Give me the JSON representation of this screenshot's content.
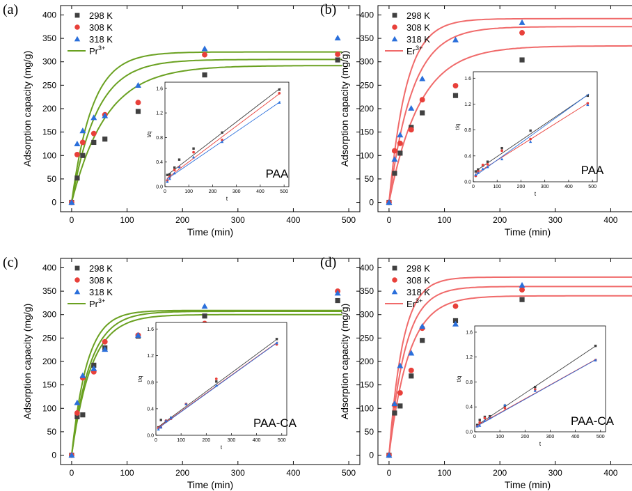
{
  "chart_data": [
    {
      "type": "scatter",
      "panel_label": "(a)",
      "ion_prefix": "Pr",
      "ion_charge": "3+",
      "material": "PAA",
      "fit_color": "#6aa121",
      "xlabel": "Time (min)",
      "ylabel": "Adsorption capacity (mg/g)",
      "xlim": [
        -20,
        520
      ],
      "ylim": [
        -20,
        420
      ],
      "xticks": [
        0,
        100,
        200,
        300,
        400,
        500
      ],
      "yticks": [
        0,
        50,
        100,
        150,
        200,
        250,
        300,
        350,
        400
      ],
      "series": [
        {
          "name": "298 K",
          "marker": "square",
          "color": "#404040",
          "x": [
            0,
            10,
            20,
            40,
            60,
            120,
            240,
            480
          ],
          "y": [
            0,
            52,
            100,
            128,
            135,
            194,
            272,
            304
          ]
        },
        {
          "name": "308 K",
          "marker": "circle",
          "color": "#e8403a",
          "x": [
            0,
            10,
            20,
            40,
            60,
            120,
            240,
            480
          ],
          "y": [
            0,
            102,
            128,
            147,
            187,
            213,
            315,
            316
          ]
        },
        {
          "name": "318 K",
          "marker": "triangle",
          "color": "#2a6fdb",
          "x": [
            0,
            10,
            20,
            40,
            60,
            120,
            240,
            480
          ],
          "y": [
            0,
            125,
            153,
            181,
            185,
            250,
            328,
            351
          ]
        }
      ],
      "fits": [
        {
          "qe": 292,
          "k": 0.016
        },
        {
          "qe": 305,
          "k": 0.022
        },
        {
          "qe": 321,
          "k": 0.027
        }
      ],
      "inset": {
        "xlabel": "t",
        "ylabel": "t/q",
        "xlim": [
          0,
          520
        ],
        "ylim": [
          0,
          1.7
        ],
        "xticks": [
          0,
          100,
          200,
          300,
          400,
          500
        ],
        "yticks": [
          0.0,
          0.4,
          0.8,
          1.2,
          1.6
        ],
        "series": [
          {
            "name": "298 K",
            "marker": "square",
            "color": "#404040",
            "x": [
              10,
              20,
              40,
              60,
              120,
              240,
              480
            ],
            "y": [
              0.19,
              0.2,
              0.31,
              0.44,
              0.62,
              0.88,
              1.58
            ],
            "fit": [
              0.16,
              0.00298
            ]
          },
          {
            "name": "308 K",
            "marker": "circle",
            "color": "#e8403a",
            "x": [
              10,
              20,
              40,
              60,
              120,
              240,
              480
            ],
            "y": [
              0.1,
              0.16,
              0.27,
              0.32,
              0.56,
              0.76,
              1.52
            ],
            "fit": [
              0.11,
              0.00292
            ]
          },
          {
            "name": "318 K",
            "marker": "triangle",
            "color": "#2a6fdb",
            "x": [
              10,
              20,
              40,
              60,
              120,
              240,
              480
            ],
            "y": [
              0.08,
              0.13,
              0.22,
              0.32,
              0.48,
              0.73,
              1.37
            ],
            "fit": [
              0.1,
              0.00265
            ]
          }
        ]
      }
    },
    {
      "type": "scatter",
      "panel_label": "(b)",
      "ion_prefix": "Er",
      "ion_charge": "3+",
      "material": "PAA",
      "fit_color": "#f06a6a",
      "xlabel": "Time (min)",
      "ylabel": "Adsorption capacity (mg/g)",
      "xlim": [
        -20,
        520
      ],
      "ylim": [
        -20,
        420
      ],
      "xticks": [
        0,
        100,
        200,
        300,
        400,
        500
      ],
      "yticks": [
        0,
        50,
        100,
        150,
        200,
        250,
        300,
        350,
        400
      ],
      "series": [
        {
          "name": "298 K",
          "marker": "square",
          "color": "#404040",
          "x": [
            0,
            10,
            20,
            40,
            60,
            120,
            240,
            480
          ],
          "y": [
            0,
            62,
            105,
            160,
            191,
            228,
            304,
            361
          ]
        },
        {
          "name": "308 K",
          "marker": "circle",
          "color": "#e8403a",
          "x": [
            0,
            10,
            20,
            40,
            60,
            120,
            240,
            480
          ],
          "y": [
            0,
            110,
            126,
            155,
            219,
            249,
            362,
            397
          ]
        },
        {
          "name": "318 K",
          "marker": "triangle",
          "color": "#2a6fdb",
          "x": [
            0,
            10,
            20,
            40,
            60,
            120,
            240,
            480
          ],
          "y": [
            0,
            92,
            144,
            201,
            264,
            347,
            384,
            402
          ]
        }
      ],
      "fits": [
        {
          "qe": 334,
          "k": 0.018
        },
        {
          "qe": 375,
          "k": 0.024
        },
        {
          "qe": 392,
          "k": 0.032
        }
      ],
      "inset": {
        "xlabel": "t",
        "ylabel": "t/q",
        "xlim": [
          0,
          520
        ],
        "ylim": [
          0,
          1.7
        ],
        "xticks": [
          0,
          100,
          200,
          300,
          400,
          500
        ],
        "yticks": [
          0.0,
          0.4,
          0.8,
          1.2,
          1.6
        ],
        "series": [
          {
            "name": "298 K",
            "marker": "square",
            "color": "#404040",
            "x": [
              10,
              20,
              40,
              60,
              120,
              240,
              480
            ],
            "y": [
              0.16,
              0.19,
              0.25,
              0.31,
              0.52,
              0.79,
              1.33
            ],
            "fit": [
              0.14,
              0.0025
            ]
          },
          {
            "name": "308 K",
            "marker": "circle",
            "color": "#e8403a",
            "x": [
              10,
              20,
              40,
              60,
              120,
              240,
              480
            ],
            "y": [
              0.09,
              0.16,
              0.26,
              0.27,
              0.48,
              0.66,
              1.21
            ],
            "fit": [
              0.1,
              0.00232
            ]
          },
          {
            "name": "318 K",
            "marker": "triangle",
            "color": "#2a6fdb",
            "x": [
              10,
              20,
              40,
              60,
              120,
              240,
              480
            ],
            "y": [
              0.11,
              0.14,
              0.2,
              0.23,
              0.35,
              0.62,
              1.19
            ],
            "fit": [
              0.07,
              0.00265
            ]
          }
        ]
      }
    },
    {
      "type": "scatter",
      "panel_label": "(c)",
      "ion_prefix": "Pr",
      "ion_charge": "3+",
      "material": "PAA-CA",
      "fit_color": "#6aa121",
      "xlabel": "Time (min)",
      "ylabel": "Adsorption capacity (mg/g)",
      "xlim": [
        -20,
        520
      ],
      "ylim": [
        -20,
        420
      ],
      "xticks": [
        0,
        100,
        200,
        300,
        400,
        500
      ],
      "yticks": [
        0,
        50,
        100,
        150,
        200,
        250,
        300,
        350,
        400
      ],
      "series": [
        {
          "name": "298 K",
          "marker": "square",
          "color": "#404040",
          "x": [
            0,
            10,
            20,
            40,
            60,
            120,
            240,
            480
          ],
          "y": [
            0,
            82,
            86,
            192,
            229,
            254,
            297,
            330
          ]
        },
        {
          "name": "308 K",
          "marker": "circle",
          "color": "#e8403a",
          "x": [
            0,
            10,
            20,
            40,
            60,
            120,
            240,
            480
          ],
          "y": [
            0,
            90,
            165,
            178,
            242,
            256,
            281,
            350
          ]
        },
        {
          "name": "318 K",
          "marker": "triangle",
          "color": "#2a6fdb",
          "x": [
            0,
            10,
            20,
            40,
            60,
            120,
            240,
            480
          ],
          "y": [
            0,
            112,
            170,
            185,
            226,
            256,
            318,
            346
          ]
        }
      ],
      "fits": [
        {
          "qe": 300,
          "k": 0.028
        },
        {
          "qe": 307,
          "k": 0.03
        },
        {
          "qe": 309,
          "k": 0.036
        }
      ],
      "inset": {
        "xlabel": "t",
        "ylabel": "t/q",
        "xlim": [
          0,
          520
        ],
        "ylim": [
          0,
          1.7
        ],
        "xticks": [
          0,
          100,
          200,
          300,
          400,
          500
        ],
        "yticks": [
          0.0,
          0.4,
          0.8,
          1.2,
          1.6
        ],
        "series": [
          {
            "name": "298 K",
            "marker": "square",
            "color": "#404040",
            "x": [
              10,
              20,
              40,
              60,
              120,
              240,
              480
            ],
            "y": [
              0.12,
              0.23,
              0.21,
              0.26,
              0.47,
              0.81,
              1.45
            ],
            "fit": [
              0.1,
              0.0028
            ]
          },
          {
            "name": "308 K",
            "marker": "circle",
            "color": "#e8403a",
            "x": [
              10,
              20,
              40,
              60,
              120,
              240,
              480
            ],
            "y": [
              0.11,
              0.12,
              0.22,
              0.25,
              0.47,
              0.85,
              1.37
            ],
            "fit": [
              0.09,
              0.00272
            ]
          },
          {
            "name": "318 K",
            "marker": "triangle",
            "color": "#2a6fdb",
            "x": [
              10,
              20,
              40,
              60,
              120,
              240,
              480
            ],
            "y": [
              0.09,
              0.12,
              0.22,
              0.27,
              0.47,
              0.75,
              1.39
            ],
            "fit": [
              0.08,
              0.00273
            ]
          }
        ]
      }
    },
    {
      "type": "scatter",
      "panel_label": "(d)",
      "ion_prefix": "Er",
      "ion_charge": "3+",
      "material": "PAA-CA",
      "fit_color": "#f06a6a",
      "xlabel": "Time (min)",
      "ylabel": "Adsorption capacity (mg/g)",
      "xlim": [
        -20,
        520
      ],
      "ylim": [
        -20,
        420
      ],
      "xticks": [
        0,
        100,
        200,
        300,
        400,
        500
      ],
      "yticks": [
        0,
        50,
        100,
        150,
        200,
        250,
        300,
        350,
        400
      ],
      "series": [
        {
          "name": "298 K",
          "marker": "square",
          "color": "#404040",
          "x": [
            0,
            10,
            20,
            40,
            60,
            120,
            240,
            480
          ],
          "y": [
            0,
            90,
            105,
            169,
            245,
            287,
            332,
            349
          ]
        },
        {
          "name": "308 K",
          "marker": "circle",
          "color": "#e8403a",
          "x": [
            0,
            10,
            20,
            40,
            60,
            120,
            240,
            480
          ],
          "y": [
            0,
            107,
            133,
            181,
            271,
            318,
            353,
            418
          ]
        },
        {
          "name": "318 K",
          "marker": "triangle",
          "color": "#2a6fdb",
          "x": [
            0,
            10,
            20,
            40,
            60,
            120,
            240,
            480
          ],
          "y": [
            0,
            110,
            191,
            218,
            275,
            280,
            363,
            418
          ]
        }
      ],
      "fits": [
        {
          "qe": 340,
          "k": 0.028
        },
        {
          "qe": 360,
          "k": 0.034
        },
        {
          "qe": 380,
          "k": 0.04
        }
      ],
      "inset": {
        "xlabel": "t",
        "ylabel": "t/q",
        "xlim": [
          0,
          520
        ],
        "ylim": [
          0,
          1.7
        ],
        "xticks": [
          0,
          100,
          200,
          300,
          400,
          500
        ],
        "yticks": [
          0.0,
          0.4,
          0.8,
          1.2,
          1.6
        ],
        "series": [
          {
            "name": "298 K",
            "marker": "square",
            "color": "#404040",
            "x": [
              10,
              20,
              40,
              60,
              120,
              240,
              480
            ],
            "y": [
              0.11,
              0.19,
              0.24,
              0.25,
              0.42,
              0.72,
              1.38
            ],
            "fit": [
              0.08,
              0.0027
            ]
          },
          {
            "name": "308 K",
            "marker": "circle",
            "color": "#e8403a",
            "x": [
              10,
              20,
              40,
              60,
              120,
              240,
              480
            ],
            "y": [
              0.09,
              0.15,
              0.22,
              0.22,
              0.38,
              0.68,
              1.15
            ],
            "fit": [
              0.08,
              0.00225
            ]
          },
          {
            "name": "318 K",
            "marker": "triangle",
            "color": "#2a6fdb",
            "x": [
              10,
              20,
              40,
              60,
              120,
              240,
              480
            ],
            "y": [
              0.09,
              0.1,
              0.18,
              0.22,
              0.43,
              0.66,
              1.15
            ],
            "fit": [
              0.07,
              0.00226
            ]
          }
        ]
      }
    }
  ]
}
